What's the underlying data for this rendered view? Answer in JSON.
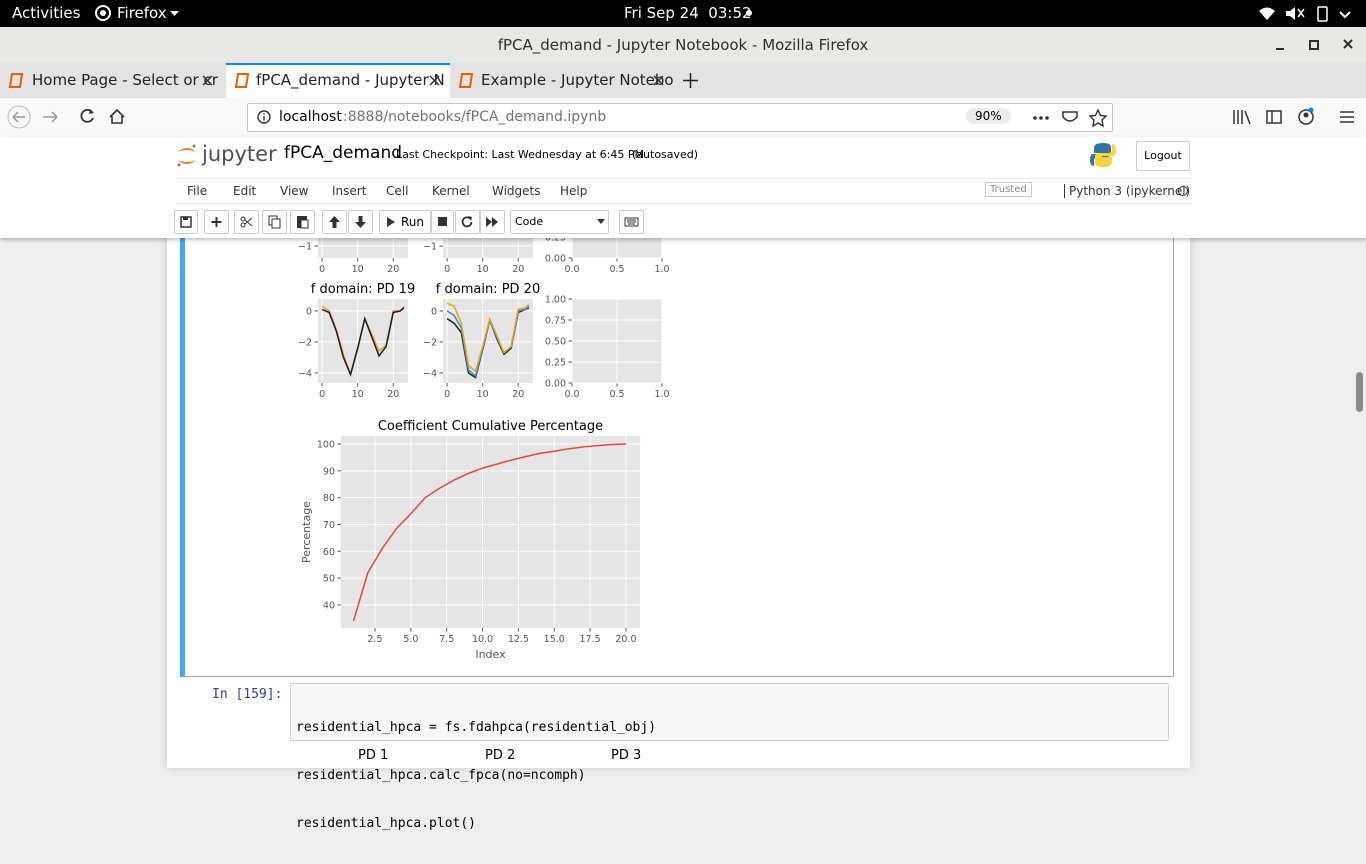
{
  "system_bar": {
    "activities": "Activities",
    "app": "Firefox",
    "clock": "Fri Sep 24  03:52"
  },
  "window": {
    "title": "fPCA_demand - Jupyter Notebook - Mozilla Firefox"
  },
  "tabs": [
    {
      "title": "Home Page - Select or cr"
    },
    {
      "title": "fPCA_demand - Jupyter N"
    },
    {
      "title": "Example - Jupyter Notebo"
    }
  ],
  "url_bar": {
    "host": "localhost",
    "path": ":8888/notebooks/fPCA_demand.ipynb",
    "zoom": "90%"
  },
  "jupyter": {
    "logo": "jupyter",
    "notebook_name": "fPCA_demand",
    "checkpoint": "Last Checkpoint: Last Wednesday at 6:45 PM",
    "autosave": "(autosaved)",
    "logout": "Logout",
    "menu": [
      "File",
      "Edit",
      "View",
      "Insert",
      "Cell",
      "Kernel",
      "Widgets",
      "Help"
    ],
    "trusted": "Trusted",
    "kernel": "Python 3 (ipykernel)",
    "run": "Run",
    "cell_type": "Code"
  },
  "chart_data": [
    {
      "type": "line",
      "xlim": [
        -1.15,
        24.15
      ],
      "ylim": [
        -1.77,
        -0.48
      ],
      "xticks": [
        0,
        10,
        20
      ],
      "yticks": [
        {
          "value": -1,
          "label": "−1"
        }
      ],
      "grid": true
    },
    {
      "type": "line",
      "xlim": [
        -1.15,
        24.15
      ],
      "ylim": [
        -1.77,
        -0.48
      ],
      "xticks": [
        0,
        10,
        20
      ],
      "yticks": [
        {
          "value": -1,
          "label": "−1"
        }
      ],
      "grid": true
    },
    {
      "type": "line",
      "xlim": [
        0,
        1
      ],
      "ylim": [
        0,
        0.25
      ],
      "xticks": [
        {
          "value": 0,
          "label": "0.0"
        },
        {
          "value": 0.5,
          "label": "0.5"
        },
        {
          "value": 1,
          "label": "1.0"
        }
      ],
      "yticks": [
        {
          "value": 0,
          "label": "0.00"
        },
        {
          "value": 0.25,
          "label": "0.25"
        }
      ],
      "grid": true
    },
    {
      "type": "line",
      "title": "f domain: PD 19",
      "xlim": [
        -1.15,
        24.15
      ],
      "ylim": [
        -4.65,
        0.77
      ],
      "xticks": [
        0,
        10,
        20
      ],
      "yticks": [
        0,
        {
          "value": -2,
          "label": "−2"
        },
        {
          "value": -4,
          "label": "−4"
        }
      ],
      "grid": true,
      "x": [
        0,
        2,
        4,
        6,
        8,
        10,
        12,
        14,
        16,
        18,
        20,
        22,
        23
      ],
      "series": [
        {
          "color": "#e8a317",
          "values": [
            0.3,
            0,
            -1.2,
            -2.8,
            -4.1,
            -2.5,
            -0.5,
            -1.5,
            -2.6,
            -2.2,
            0,
            0,
            0.3
          ]
        },
        {
          "color": "#14202e",
          "values": [
            0.1,
            -0.1,
            -1.3,
            -3,
            -4.1,
            -2.4,
            -0.5,
            -1.7,
            -2.9,
            -2.3,
            -0.1,
            0,
            0.2
          ]
        }
      ]
    },
    {
      "type": "line",
      "title": "f domain: PD 20",
      "xlim": [
        -1.15,
        24.15
      ],
      "ylim": [
        -4.65,
        0.77
      ],
      "xticks": [
        0,
        10,
        20
      ],
      "yticks": [
        0,
        {
          "value": -2,
          "label": "−2"
        },
        {
          "value": -4,
          "label": "−4"
        }
      ],
      "grid": true,
      "x": [
        0,
        2,
        4,
        6,
        8,
        10,
        12,
        14,
        16,
        18,
        20,
        22,
        23
      ],
      "series": [
        {
          "color": "#14202e",
          "values": [
            -0.5,
            -0.8,
            -1.4,
            -4,
            -4.3,
            -2.5,
            -0.6,
            -1.8,
            -2.8,
            -2.4,
            -0.1,
            0.1,
            0.2
          ]
        },
        {
          "color": "#3b8ed0",
          "values": [
            0,
            -0.3,
            -1.1,
            -3.8,
            -4.2,
            -2.4,
            -0.6,
            -1.7,
            -2.7,
            -2.3,
            0,
            0.1,
            0.3
          ]
        },
        {
          "color": "#e8a317",
          "values": [
            0.5,
            0.3,
            -0.8,
            -3.5,
            -3.9,
            -2.3,
            -0.5,
            -1.6,
            -2.7,
            -2.3,
            0.1,
            0.2,
            0.4
          ]
        }
      ]
    },
    {
      "type": "line",
      "xlim": [
        0,
        1
      ],
      "ylim": [
        0,
        1
      ],
      "xticks": [
        {
          "value": 0,
          "label": "0.0"
        },
        {
          "value": 0.5,
          "label": "0.5"
        },
        {
          "value": 1,
          "label": "1.0"
        }
      ],
      "yticks": [
        {
          "value": 0,
          "label": "0.00"
        },
        {
          "value": 0.25,
          "label": "0.25"
        },
        {
          "value": 0.5,
          "label": "0.50"
        },
        {
          "value": 0.75,
          "label": "0.75"
        },
        {
          "value": 1,
          "label": "1.00"
        }
      ],
      "grid": true
    },
    {
      "type": "line",
      "title": "Coefficient Cumulative Percentage",
      "x_label": "Index",
      "y_label": "Percentage",
      "xlim": [
        0.13,
        20.98
      ],
      "ylim": [
        31.4,
        102.98
      ],
      "xticks": [
        {
          "value": 2.5,
          "label": "2.5"
        },
        {
          "value": 5,
          "label": "5.0"
        },
        {
          "value": 7.5,
          "label": "7.5"
        },
        {
          "value": 10,
          "label": "10.0"
        },
        {
          "value": 12.5,
          "label": "12.5"
        },
        {
          "value": 15,
          "label": "15.0"
        },
        {
          "value": 17.5,
          "label": "17.5"
        },
        {
          "value": 20,
          "label": "20.0"
        }
      ],
      "yticks": [
        40,
        50,
        60,
        70,
        80,
        90,
        100
      ],
      "grid": true,
      "x": [
        1,
        2,
        3,
        4,
        5,
        6,
        7,
        8,
        9,
        10,
        11,
        12,
        13,
        14,
        15,
        16,
        17,
        18,
        19,
        20
      ],
      "series": [
        {
          "color": "#e24a33",
          "values": [
            34,
            52,
            61,
            68.5,
            74,
            80,
            83.5,
            86.5,
            89,
            91,
            92.5,
            94,
            95.3,
            96.5,
            97.3,
            98.2,
            98.9,
            99.4,
            99.8,
            100
          ]
        }
      ]
    }
  ],
  "code_cell": {
    "prompt": "In [159]:",
    "lines": [
      "residential_hpca = fs.fdahpca(residential_obj)",
      "residential_hpca.calc_fpca(no=ncomph)",
      "residential_hpca.plot()"
    ]
  },
  "next_output": {
    "titles": [
      "PD 1",
      "PD 2",
      "PD 3"
    ]
  }
}
